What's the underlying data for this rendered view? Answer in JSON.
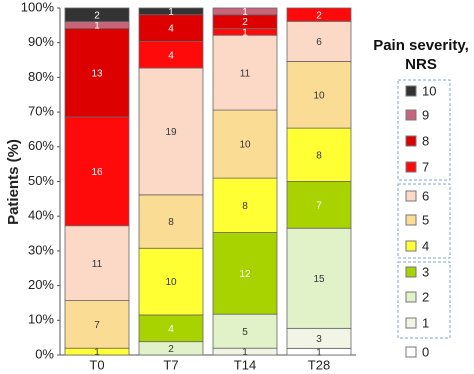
{
  "chart_data": {
    "type": "bar",
    "stack": "percent",
    "ylabel": "Patients (%)",
    "categories": [
      "T0",
      "T7",
      "T14",
      "T28"
    ],
    "ylim": [
      0,
      100
    ],
    "yticks": [
      {
        "value": 0,
        "label": "0%"
      },
      {
        "value": 10,
        "label": "10%"
      },
      {
        "value": 20,
        "label": "20%"
      },
      {
        "value": 30,
        "label": "30%"
      },
      {
        "value": 40,
        "label": "40%"
      },
      {
        "value": 50,
        "label": "50%"
      },
      {
        "value": 60,
        "label": "60%"
      },
      {
        "value": 70,
        "label": "70%"
      },
      {
        "value": 80,
        "label": "80%"
      },
      {
        "value": 90,
        "label": "90%"
      },
      {
        "value": 100,
        "label": "100%"
      }
    ],
    "legend_title": "Pain severity, NRS",
    "series": [
      {
        "name": "0",
        "color": "#ffffff",
        "values": [
          null,
          null,
          null,
          1
        ]
      },
      {
        "name": "1",
        "color": "#f2f5e6",
        "values": [
          null,
          null,
          1,
          3
        ]
      },
      {
        "name": "2",
        "color": "#e1f1c8",
        "values": [
          null,
          2,
          5,
          15
        ]
      },
      {
        "name": "3",
        "color": "#a8d300",
        "values": [
          null,
          4,
          12,
          7
        ]
      },
      {
        "name": "4",
        "color": "#ffff33",
        "values": [
          1,
          10,
          8,
          8
        ]
      },
      {
        "name": "5",
        "color": "#fbdc94",
        "values": [
          7,
          8,
          10,
          10
        ]
      },
      {
        "name": "6",
        "color": "#fcd9c6",
        "values": [
          11,
          19,
          11,
          6
        ]
      },
      {
        "name": "7",
        "color": "#ff0a0a",
        "values": [
          16,
          4,
          1,
          2
        ]
      },
      {
        "name": "8",
        "color": "#dc0000",
        "values": [
          13,
          4,
          2,
          null
        ]
      },
      {
        "name": "9",
        "color": "#c9657a",
        "values": [
          1,
          null,
          1,
          null
        ]
      },
      {
        "name": "10",
        "color": "#333333",
        "values": [
          2,
          1,
          null,
          null
        ]
      }
    ]
  }
}
